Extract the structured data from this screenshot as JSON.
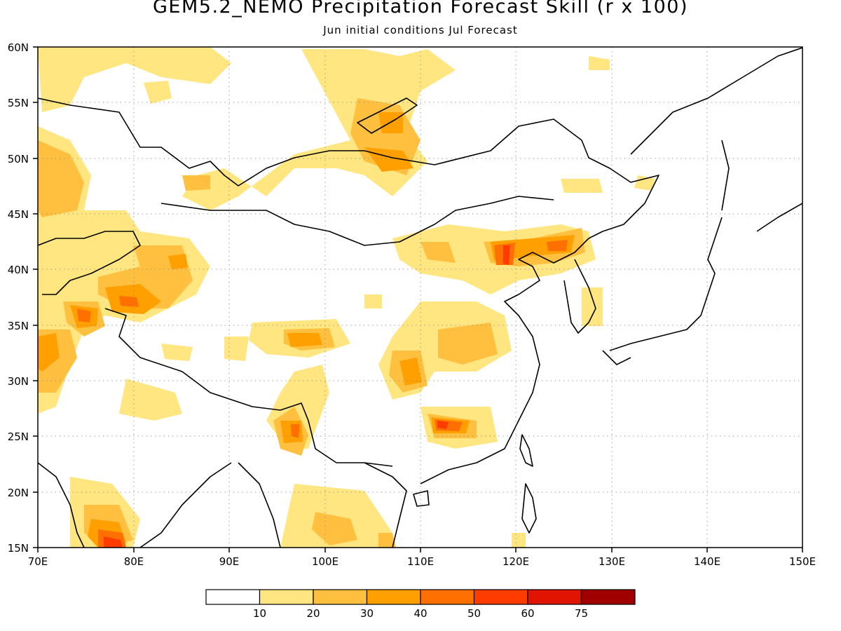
{
  "title": "GEM5.2_NEMO Precipitation Forecast Skill (r x 100)",
  "subtitle": "Jun initial conditions  Jul Forecast",
  "axes": {
    "lon_ticks": [
      "70E",
      "80E",
      "90E",
      "100E",
      "110E",
      "120E",
      "130E",
      "140E",
      "150E"
    ],
    "lat_ticks": [
      "60N",
      "55N",
      "50N",
      "45N",
      "40N",
      "35N",
      "30N",
      "25N",
      "20N",
      "15N"
    ],
    "lon_range": [
      70,
      150
    ],
    "lat_range": [
      15,
      60
    ],
    "grid": "dotted"
  },
  "colorbar": {
    "labels": [
      "10",
      "20",
      "30",
      "40",
      "50",
      "60",
      "75"
    ],
    "colors": [
      "#ffffff",
      "#ffe680",
      "#ffc040",
      "#ffa000",
      "#ff7000",
      "#ff3c00",
      "#e01400",
      "#a00000"
    ]
  }
}
